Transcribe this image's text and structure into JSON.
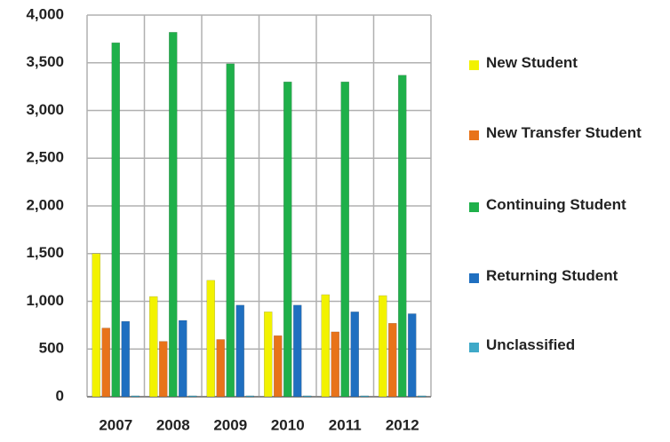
{
  "chart_data": {
    "type": "bar",
    "categories": [
      "2007",
      "2008",
      "2009",
      "2010",
      "2011",
      "2012"
    ],
    "series": [
      {
        "name": "New Student",
        "color": "#f2f200",
        "values": [
          1500,
          1050,
          1220,
          890,
          1070,
          1060
        ]
      },
      {
        "name": "New Transfer Student",
        "color": "#e8731a",
        "values": [
          720,
          580,
          600,
          640,
          680,
          770
        ]
      },
      {
        "name": "Continuing Student",
        "color": "#1fb04a",
        "values": [
          3710,
          3820,
          3490,
          3300,
          3300,
          3370
        ]
      },
      {
        "name": "Returning Student",
        "color": "#1f6fc0",
        "values": [
          790,
          800,
          960,
          960,
          890,
          870
        ]
      },
      {
        "name": "Unclassified",
        "color": "#3fa9c8",
        "values": [
          10,
          10,
          10,
          10,
          10,
          10
        ]
      }
    ],
    "ylim": [
      0,
      4000
    ],
    "yticks": [
      0,
      {
        "value": 500,
        "label": "500"
      },
      {
        "value": 1000,
        "label": "1,000"
      },
      {
        "value": 1500,
        "label": "1,500"
      },
      {
        "value": 2000,
        "label": "2,000"
      },
      {
        "value": 2500,
        "label": "2,500"
      },
      {
        "value": 3000,
        "label": "3,000"
      },
      {
        "value": 3500,
        "label": "3,500"
      },
      {
        "value": 4000,
        "label": "4,000"
      }
    ],
    "grid": true,
    "legend": "right"
  }
}
